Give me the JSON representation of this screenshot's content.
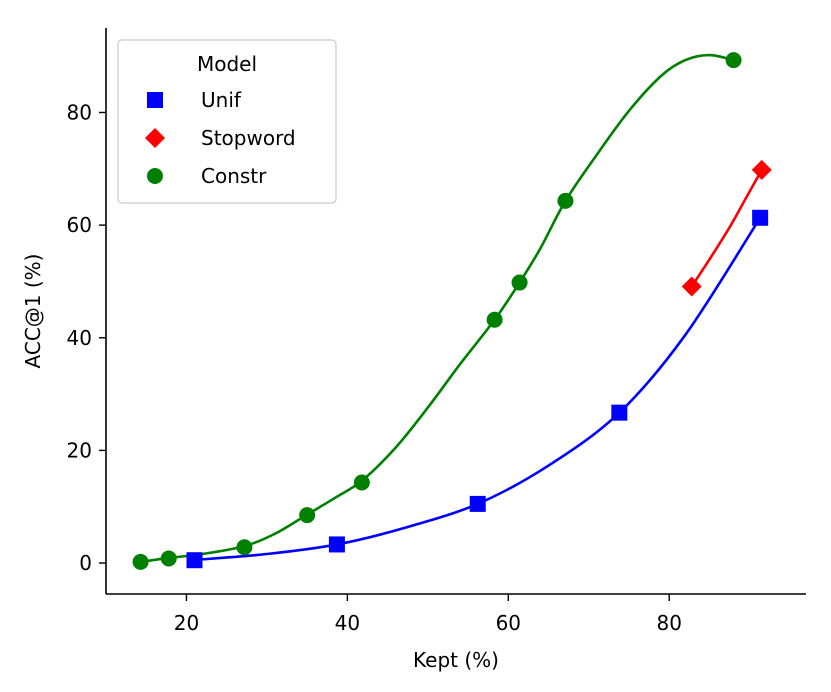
{
  "chart_data": {
    "type": "scatter",
    "xlabel": "Kept (%)",
    "ylabel": "ACC@1 (%)",
    "xlim": [
      10,
      97
    ],
    "ylim": [
      -5.5,
      95
    ],
    "xticks": [
      20,
      40,
      60,
      80
    ],
    "yticks": [
      0,
      20,
      40,
      60,
      80
    ],
    "grid": false,
    "legend": {
      "title": "Model",
      "placement": "top-left"
    },
    "series": [
      {
        "name": "Unif",
        "color": "#0000ff",
        "marker": "square",
        "points": [
          [
            21,
            0.5
          ],
          [
            38.7,
            3.3
          ],
          [
            56.2,
            10.5
          ],
          [
            73.8,
            26.7
          ],
          [
            91.3,
            61.3
          ]
        ],
        "fit": [
          [
            21,
            0.55
          ],
          [
            30,
            1.6
          ],
          [
            38.7,
            3.3
          ],
          [
            47,
            6.2
          ],
          [
            56.2,
            10.5
          ],
          [
            65,
            17.3
          ],
          [
            73.8,
            26.7
          ],
          [
            82,
            40.5
          ],
          [
            91.3,
            61.3
          ]
        ]
      },
      {
        "name": "Stopword",
        "color": "#ff0000",
        "marker": "diamond",
        "points": [
          [
            82.8,
            49.1
          ],
          [
            91.5,
            69.8
          ]
        ],
        "fit": [
          [
            82.8,
            49.1
          ],
          [
            85,
            53.9
          ],
          [
            87.5,
            59.6
          ],
          [
            89.5,
            64.7
          ],
          [
            91.5,
            69.8
          ]
        ]
      },
      {
        "name": "Constr",
        "color": "#008000",
        "marker": "circle",
        "points": [
          [
            14.3,
            0.2
          ],
          [
            17.8,
            0.8
          ],
          [
            27.2,
            2.8
          ],
          [
            35,
            8.5
          ],
          [
            41.8,
            14.3
          ],
          [
            58.3,
            43.2
          ],
          [
            61.4,
            49.8
          ],
          [
            67.1,
            64.3
          ],
          [
            88,
            89.3
          ]
        ],
        "fit": [
          [
            14.3,
            0.2
          ],
          [
            17.8,
            0.9
          ],
          [
            22,
            1.6
          ],
          [
            27.2,
            3.0
          ],
          [
            31,
            5.2
          ],
          [
            35,
            8.6
          ],
          [
            38.5,
            11.6
          ],
          [
            41.8,
            14.6
          ],
          [
            46,
            20.5
          ],
          [
            50,
            27.6
          ],
          [
            54,
            35.3
          ],
          [
            58.3,
            43.2
          ],
          [
            61.4,
            49.8
          ],
          [
            64,
            55.9
          ],
          [
            67.1,
            64.3
          ],
          [
            71,
            72.5
          ],
          [
            75,
            80.3
          ],
          [
            79,
            86.5
          ],
          [
            82,
            89.3
          ],
          [
            85,
            90.2
          ],
          [
            88,
            89.3
          ]
        ]
      }
    ]
  }
}
